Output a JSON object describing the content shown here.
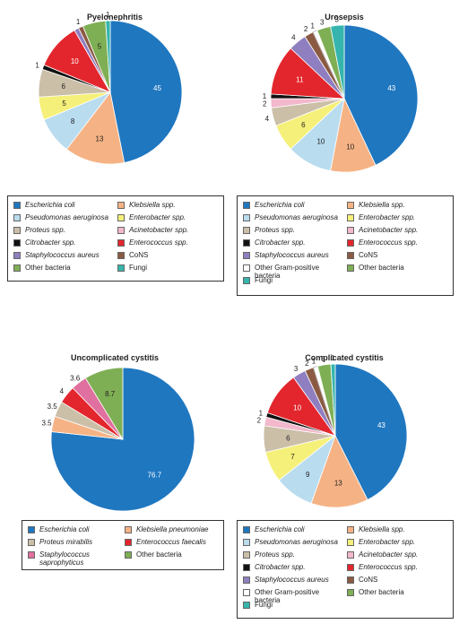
{
  "chart_data": [
    {
      "type": "pie",
      "title": "Pyelonephritis",
      "slices": [
        {
          "label": "Escherichia coli",
          "value": 45,
          "color": "#1f77c0"
        },
        {
          "label": "Klebsiella spp.",
          "value": 13,
          "color": "#f5b385"
        },
        {
          "label": "Pseudomonas aeruginosa",
          "value": 8,
          "color": "#b9dcef"
        },
        {
          "label": "Enterobacter spp.",
          "value": 5,
          "color": "#f5f079"
        },
        {
          "label": "Proteus spp.",
          "value": 6,
          "color": "#cbbfa8"
        },
        {
          "label": "Acinetobacter spp.",
          "value": 0,
          "color": "#f2b8cc"
        },
        {
          "label": "Citrobacter spp.",
          "value": 1,
          "color": "#111111"
        },
        {
          "label": "Enterococcus spp.",
          "value": 10,
          "color": "#e3262d"
        },
        {
          "label": "Staphylococcus aureus",
          "value": 1,
          "color": "#8f7fc0"
        },
        {
          "label": "CoNS",
          "value": 1,
          "color": "#8b5a43"
        },
        {
          "label": "Other bacteria",
          "value": 5,
          "color": "#7faf55"
        },
        {
          "label": "Fungi",
          "value": 1,
          "color": "#35b5ad"
        }
      ],
      "slice_labels": [
        "45",
        "13",
        "8",
        "5",
        "6",
        "",
        "1",
        "10",
        "",
        "1",
        "5",
        "1"
      ]
    },
    {
      "type": "pie",
      "title": "Urosepsis",
      "slices": [
        {
          "label": "Escherichia coli",
          "value": 43,
          "color": "#1f77c0"
        },
        {
          "label": "Klebsiella spp.",
          "value": 10,
          "color": "#f5b385"
        },
        {
          "label": "Pseudomonas aeruginosa",
          "value": 10,
          "color": "#b9dcef"
        },
        {
          "label": "Enterobacter spp.",
          "value": 6,
          "color": "#f5f079"
        },
        {
          "label": "Proteus spp.",
          "value": 4,
          "color": "#cbbfa8"
        },
        {
          "label": "Acinetobacter spp.",
          "value": 2,
          "color": "#f2b8cc"
        },
        {
          "label": "Citrobacter spp.",
          "value": 1,
          "color": "#111111"
        },
        {
          "label": "Enterococcus spp.",
          "value": 11,
          "color": "#e3262d"
        },
        {
          "label": "Staphylococcus aureus",
          "value": 4,
          "color": "#8f7fc0"
        },
        {
          "label": "CoNS",
          "value": 2,
          "color": "#8b5a43"
        },
        {
          "label": "Other Gram-positive bacteria",
          "value": 1,
          "color": "#ffffff"
        },
        {
          "label": "Other bacteria",
          "value": 3,
          "color": "#7faf55"
        },
        {
          "label": "Fungi",
          "value": 3,
          "color": "#35b5ad"
        }
      ],
      "slice_labels": [
        "43",
        "10",
        "10",
        "6",
        "4",
        "2",
        "1",
        "11",
        "4",
        "2",
        "1",
        "3",
        "3"
      ]
    },
    {
      "type": "pie",
      "title": "Uncomplicated cystitis",
      "slices": [
        {
          "label": "Escherichia coli",
          "value": 76.7,
          "color": "#1f77c0"
        },
        {
          "label": "Klebsiella pneumoniae",
          "value": 3.5,
          "color": "#f5b385"
        },
        {
          "label": "Proteus mirabilis",
          "value": 3.5,
          "color": "#cbbfa8"
        },
        {
          "label": "Enterococcus faecalis",
          "value": 4,
          "color": "#e3262d"
        },
        {
          "label": "Staphylococcus saprophyticus",
          "value": 3.6,
          "color": "#e0709f"
        },
        {
          "label": "Other bacteria",
          "value": 8.7,
          "color": "#7faf55"
        }
      ],
      "slice_labels": [
        "76.7",
        "3.5",
        "3.5",
        "4",
        "3.6",
        "8.7"
      ]
    },
    {
      "type": "pie",
      "title": "Complicated cystitis",
      "slices": [
        {
          "label": "Escherichia coli",
          "value": 43,
          "color": "#1f77c0"
        },
        {
          "label": "Klebsiella spp.",
          "value": 13,
          "color": "#f5b385"
        },
        {
          "label": "Pseudomonas aeruginosa",
          "value": 9,
          "color": "#b9dcef"
        },
        {
          "label": "Enterobacter spp.",
          "value": 7,
          "color": "#f5f079"
        },
        {
          "label": "Proteus spp.",
          "value": 6,
          "color": "#cbbfa8"
        },
        {
          "label": "Acinetobacter spp.",
          "value": 2,
          "color": "#f2b8cc"
        },
        {
          "label": "Citrobacter spp.",
          "value": 1,
          "color": "#111111"
        },
        {
          "label": "Enterococcus spp.",
          "value": 10,
          "color": "#e3262d"
        },
        {
          "label": "Staphylococcus aureus",
          "value": 3,
          "color": "#8f7fc0"
        },
        {
          "label": "CoNS",
          "value": 2,
          "color": "#8b5a43"
        },
        {
          "label": "Other Gram-positive bacteria",
          "value": 1,
          "color": "#ffffff"
        },
        {
          "label": "Other bacteria",
          "value": 3,
          "color": "#7faf55"
        },
        {
          "label": "Fungi",
          "value": 1,
          "color": "#35b5ad"
        }
      ],
      "slice_labels": [
        "43",
        "13",
        "9",
        "7",
        "6",
        "2",
        "1",
        "10",
        "3",
        "2",
        "1",
        "3",
        "1"
      ]
    }
  ],
  "legends": [
    {
      "entries": [
        {
          "label": "Escherichia coli",
          "color": "#1f77c0",
          "italic": true
        },
        {
          "label": "Klebsiella spp.",
          "color": "#f5b385",
          "italic": true
        },
        {
          "label": "Pseudomonas aeruginosa",
          "color": "#b9dcef",
          "italic": true
        },
        {
          "label": "Enterobacter spp.",
          "color": "#f5f079",
          "italic": true
        },
        {
          "label": "Proteus spp.",
          "color": "#cbbfa8",
          "italic": true
        },
        {
          "label": "Acinetobacter spp.",
          "color": "#f2b8cc",
          "italic": true
        },
        {
          "label": "Citrobacter spp.",
          "color": "#111111",
          "italic": true
        },
        {
          "label": "Enterococcus spp.",
          "color": "#e3262d",
          "italic": true
        },
        {
          "label": "Staphylococcus aureus",
          "color": "#8f7fc0",
          "italic": true
        },
        {
          "label": "CoNS",
          "color": "#8b5a43",
          "italic": false
        },
        {
          "label": "Other bacteria",
          "color": "#7faf55",
          "italic": false
        },
        {
          "label": "Fungi",
          "color": "#35b5ad",
          "italic": false
        }
      ]
    },
    {
      "entries": [
        {
          "label": "Escherichia coli",
          "color": "#1f77c0",
          "italic": true
        },
        {
          "label": "Klebsiella spp.",
          "color": "#f5b385",
          "italic": true
        },
        {
          "label": "Pseudomonas aeruginosa",
          "color": "#b9dcef",
          "italic": true
        },
        {
          "label": "Enterobacter spp.",
          "color": "#f5f079",
          "italic": true
        },
        {
          "label": "Proteus spp.",
          "color": "#cbbfa8",
          "italic": true
        },
        {
          "label": "Acinetobacter spp.",
          "color": "#f2b8cc",
          "italic": true
        },
        {
          "label": "Citrobacter spp.",
          "color": "#111111",
          "italic": true
        },
        {
          "label": "Enterococcus spp.",
          "color": "#e3262d",
          "italic": true
        },
        {
          "label": "Staphylococcus aureus",
          "color": "#8f7fc0",
          "italic": true
        },
        {
          "label": "CoNS",
          "color": "#8b5a43",
          "italic": false
        },
        {
          "label": "Other Gram-positive bacteria",
          "color": "#ffffff",
          "italic": false
        },
        {
          "label": "Other bacteria",
          "color": "#7faf55",
          "italic": false
        },
        {
          "label": "Fungi",
          "color": "#35b5ad",
          "italic": false
        }
      ]
    },
    {
      "entries": [
        {
          "label": "Escherichia coli",
          "color": "#1f77c0",
          "italic": true
        },
        {
          "label": "Klebsiella pneumoniae",
          "color": "#f5b385",
          "italic": true
        },
        {
          "label": "Proteus mirabilis",
          "color": "#cbbfa8",
          "italic": true
        },
        {
          "label": "Enterococcus faecalis",
          "color": "#e3262d",
          "italic": true
        },
        {
          "label": "Staphylococcus saprophyticus",
          "color": "#e0709f",
          "italic": true
        },
        {
          "label": "Other bacteria",
          "color": "#7faf55",
          "italic": false
        }
      ]
    },
    {
      "entries": [
        {
          "label": "Escherichia coli",
          "color": "#1f77c0",
          "italic": true
        },
        {
          "label": "Klebsiella spp.",
          "color": "#f5b385",
          "italic": true
        },
        {
          "label": "Pseudomonas aeruginosa",
          "color": "#b9dcef",
          "italic": true
        },
        {
          "label": "Enterobacter spp.",
          "color": "#f5f079",
          "italic": true
        },
        {
          "label": "Proteus spp.",
          "color": "#cbbfa8",
          "italic": true
        },
        {
          "label": "Acinetobacter spp.",
          "color": "#f2b8cc",
          "italic": true
        },
        {
          "label": "Citrobacter spp.",
          "color": "#111111",
          "italic": true
        },
        {
          "label": "Enterococcus spp.",
          "color": "#e3262d",
          "italic": true
        },
        {
          "label": "Staphylococcus aureus",
          "color": "#8f7fc0",
          "italic": true
        },
        {
          "label": "CoNS",
          "color": "#8b5a43",
          "italic": false
        },
        {
          "label": "Other Gram-positive bacteria",
          "color": "#ffffff",
          "italic": false
        },
        {
          "label": "Other bacteria",
          "color": "#7faf55",
          "italic": false
        },
        {
          "label": "Fungi",
          "color": "#35b5ad",
          "italic": false
        }
      ]
    }
  ]
}
